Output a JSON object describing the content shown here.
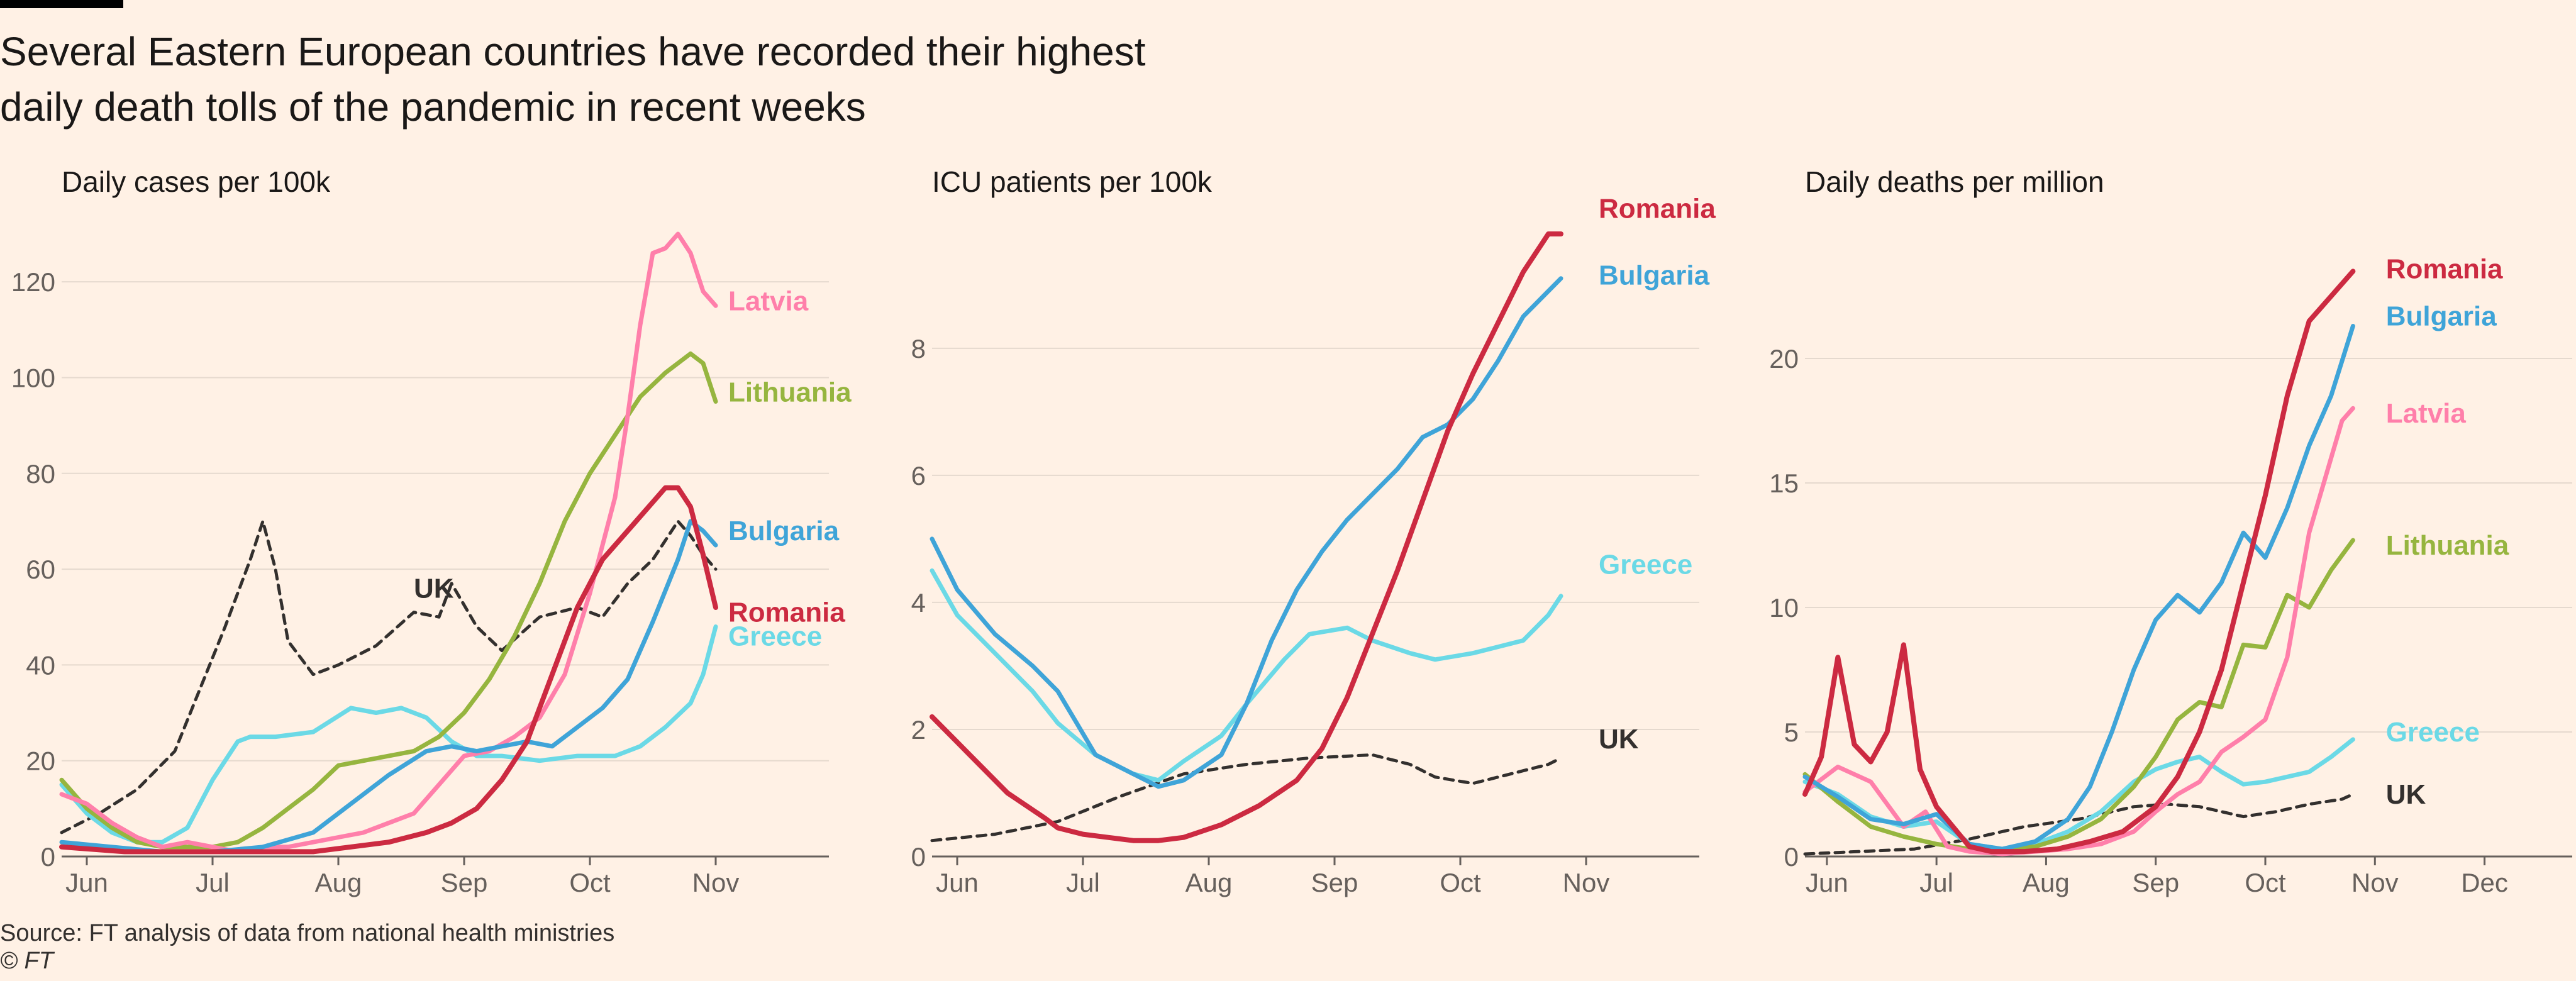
{
  "title_line1": "Several Eastern European countries have recorded their highest",
  "title_line2": "daily death tolls of the pandemic in recent weeks",
  "source": "Source: FT analysis of data from national health ministries",
  "copyright": "© FT",
  "colors": {
    "Latvia": "#ff7faa",
    "Lithuania": "#96b53f",
    "Bulgaria": "#3fa4d8",
    "Romania": "#cc2a41",
    "Greece": "#6bd9e6",
    "UK": "#33302e",
    "grid": "#e5d9ce",
    "axis": "#66605c",
    "text": "#33302e"
  },
  "chart_data": [
    {
      "type": "line",
      "title": "Daily cases per 100k",
      "xlabel": "",
      "ylabel": "",
      "xlim": [
        0,
        6.1
      ],
      "ylim": [
        0,
        130
      ],
      "yticks": [
        0,
        20,
        40,
        60,
        80,
        100,
        120
      ],
      "xticks": [
        {
          "label": "Jun",
          "x": 0.2
        },
        {
          "label": "Jul",
          "x": 1.2
        },
        {
          "label": "Aug",
          "x": 2.2
        },
        {
          "label": "Sep",
          "x": 3.2
        },
        {
          "label": "Oct",
          "x": 4.2
        },
        {
          "label": "Nov",
          "x": 5.2
        }
      ],
      "series": [
        {
          "name": "UK",
          "dashed": true,
          "label": "UK",
          "label_at": [
            2.8,
            56
          ],
          "x": [
            0,
            0.3,
            0.6,
            0.9,
            1.1,
            1.3,
            1.5,
            1.6,
            1.7,
            1.8,
            2.0,
            2.2,
            2.5,
            2.8,
            3.0,
            3.1,
            3.3,
            3.5,
            3.8,
            4.1,
            4.3,
            4.5,
            4.7,
            4.9,
            5.0,
            5.1,
            5.2
          ],
          "y": [
            5,
            9,
            14,
            22,
            35,
            48,
            62,
            70,
            60,
            45,
            38,
            40,
            44,
            51,
            50,
            57,
            48,
            43,
            50,
            52,
            50,
            57,
            62,
            70,
            67,
            63,
            60
          ]
        },
        {
          "name": "Greece",
          "label": "Greece",
          "label_at": [
            5.3,
            46
          ],
          "x": [
            0,
            0.2,
            0.4,
            0.6,
            0.8,
            1.0,
            1.2,
            1.4,
            1.5,
            1.7,
            2.0,
            2.3,
            2.5,
            2.7,
            2.9,
            3.1,
            3.3,
            3.5,
            3.8,
            4.1,
            4.4,
            4.6,
            4.8,
            5.0,
            5.1,
            5.2
          ],
          "y": [
            15,
            9,
            5,
            3,
            3,
            6,
            16,
            24,
            25,
            25,
            26,
            31,
            30,
            31,
            29,
            24,
            21,
            21,
            20,
            21,
            21,
            23,
            27,
            32,
            38,
            48
          ]
        },
        {
          "name": "Lithuania",
          "label": "Lithuania",
          "label_at": [
            5.3,
            97
          ],
          "x": [
            0,
            0.2,
            0.4,
            0.6,
            0.8,
            1.0,
            1.2,
            1.4,
            1.6,
            1.8,
            2.0,
            2.2,
            2.4,
            2.6,
            2.8,
            3.0,
            3.2,
            3.4,
            3.6,
            3.8,
            4.0,
            4.2,
            4.4,
            4.6,
            4.8,
            5.0,
            5.1,
            5.2
          ],
          "y": [
            16,
            10,
            6,
            3,
            2,
            2,
            2,
            3,
            6,
            10,
            14,
            19,
            20,
            21,
            22,
            25,
            30,
            37,
            46,
            57,
            70,
            80,
            88,
            96,
            101,
            105,
            103,
            95
          ]
        },
        {
          "name": "Latvia",
          "label": "Latvia",
          "label_at": [
            5.3,
            116
          ],
          "x": [
            0,
            0.2,
            0.4,
            0.6,
            0.8,
            1.0,
            1.2,
            1.4,
            1.6,
            1.8,
            2.0,
            2.2,
            2.4,
            2.6,
            2.8,
            3.0,
            3.2,
            3.4,
            3.6,
            3.8,
            4.0,
            4.2,
            4.4,
            4.5,
            4.6,
            4.7,
            4.8,
            4.9,
            5.0,
            5.1,
            5.2
          ],
          "y": [
            13,
            11,
            7,
            4,
            2,
            3,
            2,
            1,
            2,
            2,
            3,
            4,
            5,
            7,
            9,
            15,
            21,
            22,
            25,
            29,
            38,
            55,
            75,
            92,
            111,
            126,
            127,
            130,
            126,
            118,
            115
          ]
        },
        {
          "name": "Bulgaria",
          "label": "Bulgaria",
          "label_at": [
            5.3,
            68
          ],
          "x": [
            0,
            0.4,
            0.8,
            1.2,
            1.6,
            2.0,
            2.3,
            2.6,
            2.9,
            3.1,
            3.3,
            3.5,
            3.7,
            3.9,
            4.1,
            4.3,
            4.5,
            4.7,
            4.9,
            5.0,
            5.1,
            5.2
          ],
          "y": [
            3,
            2,
            1,
            1,
            2,
            5,
            11,
            17,
            22,
            23,
            22,
            23,
            24,
            23,
            27,
            31,
            37,
            49,
            62,
            70,
            68,
            65
          ]
        },
        {
          "name": "Romania",
          "label": "Romania",
          "label_at": [
            5.3,
            51
          ],
          "x": [
            0,
            0.5,
            1.0,
            1.5,
            2.0,
            2.3,
            2.6,
            2.9,
            3.1,
            3.3,
            3.5,
            3.7,
            3.9,
            4.1,
            4.3,
            4.5,
            4.7,
            4.8,
            4.9,
            5.0,
            5.1,
            5.2
          ],
          "y": [
            2,
            1,
            1,
            1,
            1,
            2,
            3,
            5,
            7,
            10,
            16,
            24,
            38,
            52,
            62,
            68,
            74,
            77,
            77,
            73,
            63,
            52
          ]
        }
      ]
    },
    {
      "type": "line",
      "title": "ICU patients per 100k",
      "xlabel": "",
      "ylabel": "",
      "xlim": [
        0,
        6.1
      ],
      "ylim": [
        0,
        9.8
      ],
      "yticks": [
        0,
        2,
        4,
        6,
        8
      ],
      "xticks": [
        {
          "label": "Jun",
          "x": 0.2
        },
        {
          "label": "Jul",
          "x": 1.2
        },
        {
          "label": "Aug",
          "x": 2.2
        },
        {
          "label": "Sep",
          "x": 3.2
        },
        {
          "label": "Oct",
          "x": 4.2
        },
        {
          "label": "Nov",
          "x": 5.2
        }
      ],
      "series": [
        {
          "name": "UK",
          "dashed": true,
          "label": "UK",
          "label_at": [
            5.3,
            1.85
          ],
          "x": [
            0,
            0.5,
            1.0,
            1.5,
            2.0,
            2.5,
            3.0,
            3.5,
            3.8,
            4.0,
            4.3,
            4.6,
            4.9,
            5.0
          ],
          "y": [
            0.25,
            0.35,
            0.55,
            0.95,
            1.3,
            1.45,
            1.55,
            1.6,
            1.45,
            1.25,
            1.15,
            1.3,
            1.45,
            1.55
          ]
        },
        {
          "name": "Greece",
          "label": "Greece",
          "label_at": [
            5.3,
            4.6
          ],
          "x": [
            0,
            0.2,
            0.5,
            0.8,
            1.0,
            1.3,
            1.6,
            1.8,
            2.0,
            2.3,
            2.5,
            2.8,
            3.0,
            3.3,
            3.5,
            3.8,
            4.0,
            4.3,
            4.5,
            4.7,
            4.9,
            5.0
          ],
          "y": [
            4.5,
            3.8,
            3.2,
            2.6,
            2.1,
            1.6,
            1.3,
            1.2,
            1.5,
            1.9,
            2.4,
            3.1,
            3.5,
            3.6,
            3.4,
            3.2,
            3.1,
            3.2,
            3.3,
            3.4,
            3.8,
            4.1
          ]
        },
        {
          "name": "Bulgaria",
          "label": "Bulgaria",
          "label_at": [
            5.3,
            9.15
          ],
          "x": [
            0,
            0.2,
            0.5,
            0.8,
            1.0,
            1.3,
            1.6,
            1.8,
            2.0,
            2.3,
            2.5,
            2.7,
            2.9,
            3.1,
            3.3,
            3.5,
            3.7,
            3.9,
            4.1,
            4.3,
            4.5,
            4.7,
            4.9,
            5.0
          ],
          "y": [
            5.0,
            4.2,
            3.5,
            3.0,
            2.6,
            1.6,
            1.3,
            1.1,
            1.2,
            1.6,
            2.4,
            3.4,
            4.2,
            4.8,
            5.3,
            5.7,
            6.1,
            6.6,
            6.8,
            7.2,
            7.8,
            8.5,
            8.9,
            9.1
          ]
        },
        {
          "name": "Romania",
          "label": "Romania",
          "label_at": [
            5.3,
            10.2
          ],
          "x": [
            0,
            0.3,
            0.6,
            0.9,
            1.0,
            1.2,
            1.4,
            1.6,
            1.8,
            2.0,
            2.3,
            2.6,
            2.9,
            3.1,
            3.3,
            3.5,
            3.7,
            3.9,
            4.1,
            4.3,
            4.5,
            4.7,
            4.9,
            5.0
          ],
          "y": [
            2.2,
            1.6,
            1.0,
            0.6,
            0.45,
            0.35,
            0.3,
            0.25,
            0.25,
            0.3,
            0.5,
            0.8,
            1.2,
            1.7,
            2.5,
            3.5,
            4.5,
            5.6,
            6.7,
            7.6,
            8.4,
            9.2,
            9.9,
            10.2
          ]
        }
      ]
    },
    {
      "type": "line",
      "title": "Daily deaths per million",
      "xlabel": "",
      "ylabel": "",
      "xlim": [
        0,
        7.0
      ],
      "ylim": [
        0,
        25
      ],
      "yticks": [
        0,
        5,
        10,
        15,
        20
      ],
      "xticks": [
        {
          "label": "Jun",
          "x": 0.2
        },
        {
          "label": "Jul",
          "x": 1.2
        },
        {
          "label": "Aug",
          "x": 2.2
        },
        {
          "label": "Sep",
          "x": 3.2
        },
        {
          "label": "Oct",
          "x": 4.2
        },
        {
          "label": "Nov",
          "x": 5.2
        },
        {
          "label": "Dec",
          "x": 6.2
        }
      ],
      "series": [
        {
          "name": "UK",
          "dashed": true,
          "label": "UK",
          "label_at": [
            5.3,
            2.5
          ],
          "x": [
            0,
            0.5,
            1.0,
            1.5,
            2.0,
            2.5,
            3.0,
            3.3,
            3.6,
            4.0,
            4.3,
            4.6,
            4.9,
            5.0
          ],
          "y": [
            0.1,
            0.2,
            0.3,
            0.7,
            1.2,
            1.5,
            2.0,
            2.1,
            2.0,
            1.6,
            1.8,
            2.1,
            2.3,
            2.5
          ]
        },
        {
          "name": "Greece",
          "label": "Greece",
          "label_at": [
            5.3,
            5.0
          ],
          "x": [
            0,
            0.3,
            0.6,
            0.9,
            1.2,
            1.5,
            1.8,
            2.1,
            2.4,
            2.7,
            3.0,
            3.2,
            3.4,
            3.6,
            3.8,
            4.0,
            4.2,
            4.4,
            4.6,
            4.8,
            5.0
          ],
          "y": [
            3.0,
            2.5,
            1.6,
            1.2,
            1.4,
            0.5,
            0.3,
            0.5,
            1.0,
            1.8,
            3.0,
            3.5,
            3.8,
            4.0,
            3.4,
            2.9,
            3.0,
            3.2,
            3.4,
            4.0,
            4.7
          ]
        },
        {
          "name": "Lithuania",
          "label": "Lithuania",
          "label_at": [
            5.3,
            12.5
          ],
          "x": [
            0,
            0.3,
            0.6,
            0.9,
            1.2,
            1.5,
            1.8,
            2.1,
            2.4,
            2.7,
            3.0,
            3.2,
            3.4,
            3.6,
            3.8,
            4.0,
            4.2,
            4.4,
            4.6,
            4.8,
            5.0
          ],
          "y": [
            3.3,
            2.2,
            1.2,
            0.8,
            0.5,
            0.3,
            0.3,
            0.4,
            0.8,
            1.5,
            2.8,
            4.0,
            5.5,
            6.2,
            6.0,
            8.5,
            8.4,
            10.5,
            10.0,
            11.5,
            12.7
          ]
        },
        {
          "name": "Latvia",
          "label": "Latvia",
          "label_at": [
            5.3,
            17.8
          ],
          "x": [
            0,
            0.3,
            0.6,
            0.9,
            1.1,
            1.3,
            1.5,
            1.8,
            2.1,
            2.4,
            2.7,
            3.0,
            3.2,
            3.4,
            3.6,
            3.8,
            4.0,
            4.2,
            4.4,
            4.6,
            4.8,
            4.9,
            5.0
          ],
          "y": [
            2.6,
            3.6,
            3.0,
            1.2,
            1.8,
            0.4,
            0.2,
            0.1,
            0.2,
            0.3,
            0.5,
            1.0,
            1.8,
            2.5,
            3.0,
            4.2,
            4.8,
            5.5,
            8.0,
            13.0,
            16.0,
            17.5,
            18.0
          ]
        },
        {
          "name": "Bulgaria",
          "label": "Bulgaria",
          "label_at": [
            5.3,
            21.7
          ],
          "x": [
            0,
            0.3,
            0.6,
            0.9,
            1.2,
            1.5,
            1.8,
            2.1,
            2.4,
            2.6,
            2.8,
            3.0,
            3.2,
            3.4,
            3.6,
            3.8,
            4.0,
            4.2,
            4.4,
            4.6,
            4.8,
            5.0
          ],
          "y": [
            3.2,
            2.4,
            1.5,
            1.3,
            1.7,
            0.5,
            0.3,
            0.6,
            1.5,
            2.8,
            5.0,
            7.5,
            9.5,
            10.5,
            9.8,
            11.0,
            13.0,
            12.0,
            14.0,
            16.5,
            18.5,
            21.3
          ]
        },
        {
          "name": "Romania",
          "label": "Romania",
          "label_at": [
            5.3,
            23.6
          ],
          "x": [
            0,
            0.15,
            0.3,
            0.45,
            0.6,
            0.75,
            0.9,
            1.05,
            1.2,
            1.35,
            1.5,
            1.7,
            2.0,
            2.3,
            2.6,
            2.9,
            3.2,
            3.4,
            3.6,
            3.8,
            4.0,
            4.2,
            4.4,
            4.6,
            4.8,
            5.0
          ],
          "y": [
            2.5,
            4.0,
            8.0,
            4.5,
            3.8,
            5.0,
            8.5,
            3.5,
            2.0,
            1.2,
            0.4,
            0.2,
            0.2,
            0.3,
            0.6,
            1.0,
            2.0,
            3.2,
            5.0,
            7.5,
            11.0,
            14.5,
            18.5,
            21.5,
            22.5,
            23.5
          ]
        }
      ]
    }
  ]
}
